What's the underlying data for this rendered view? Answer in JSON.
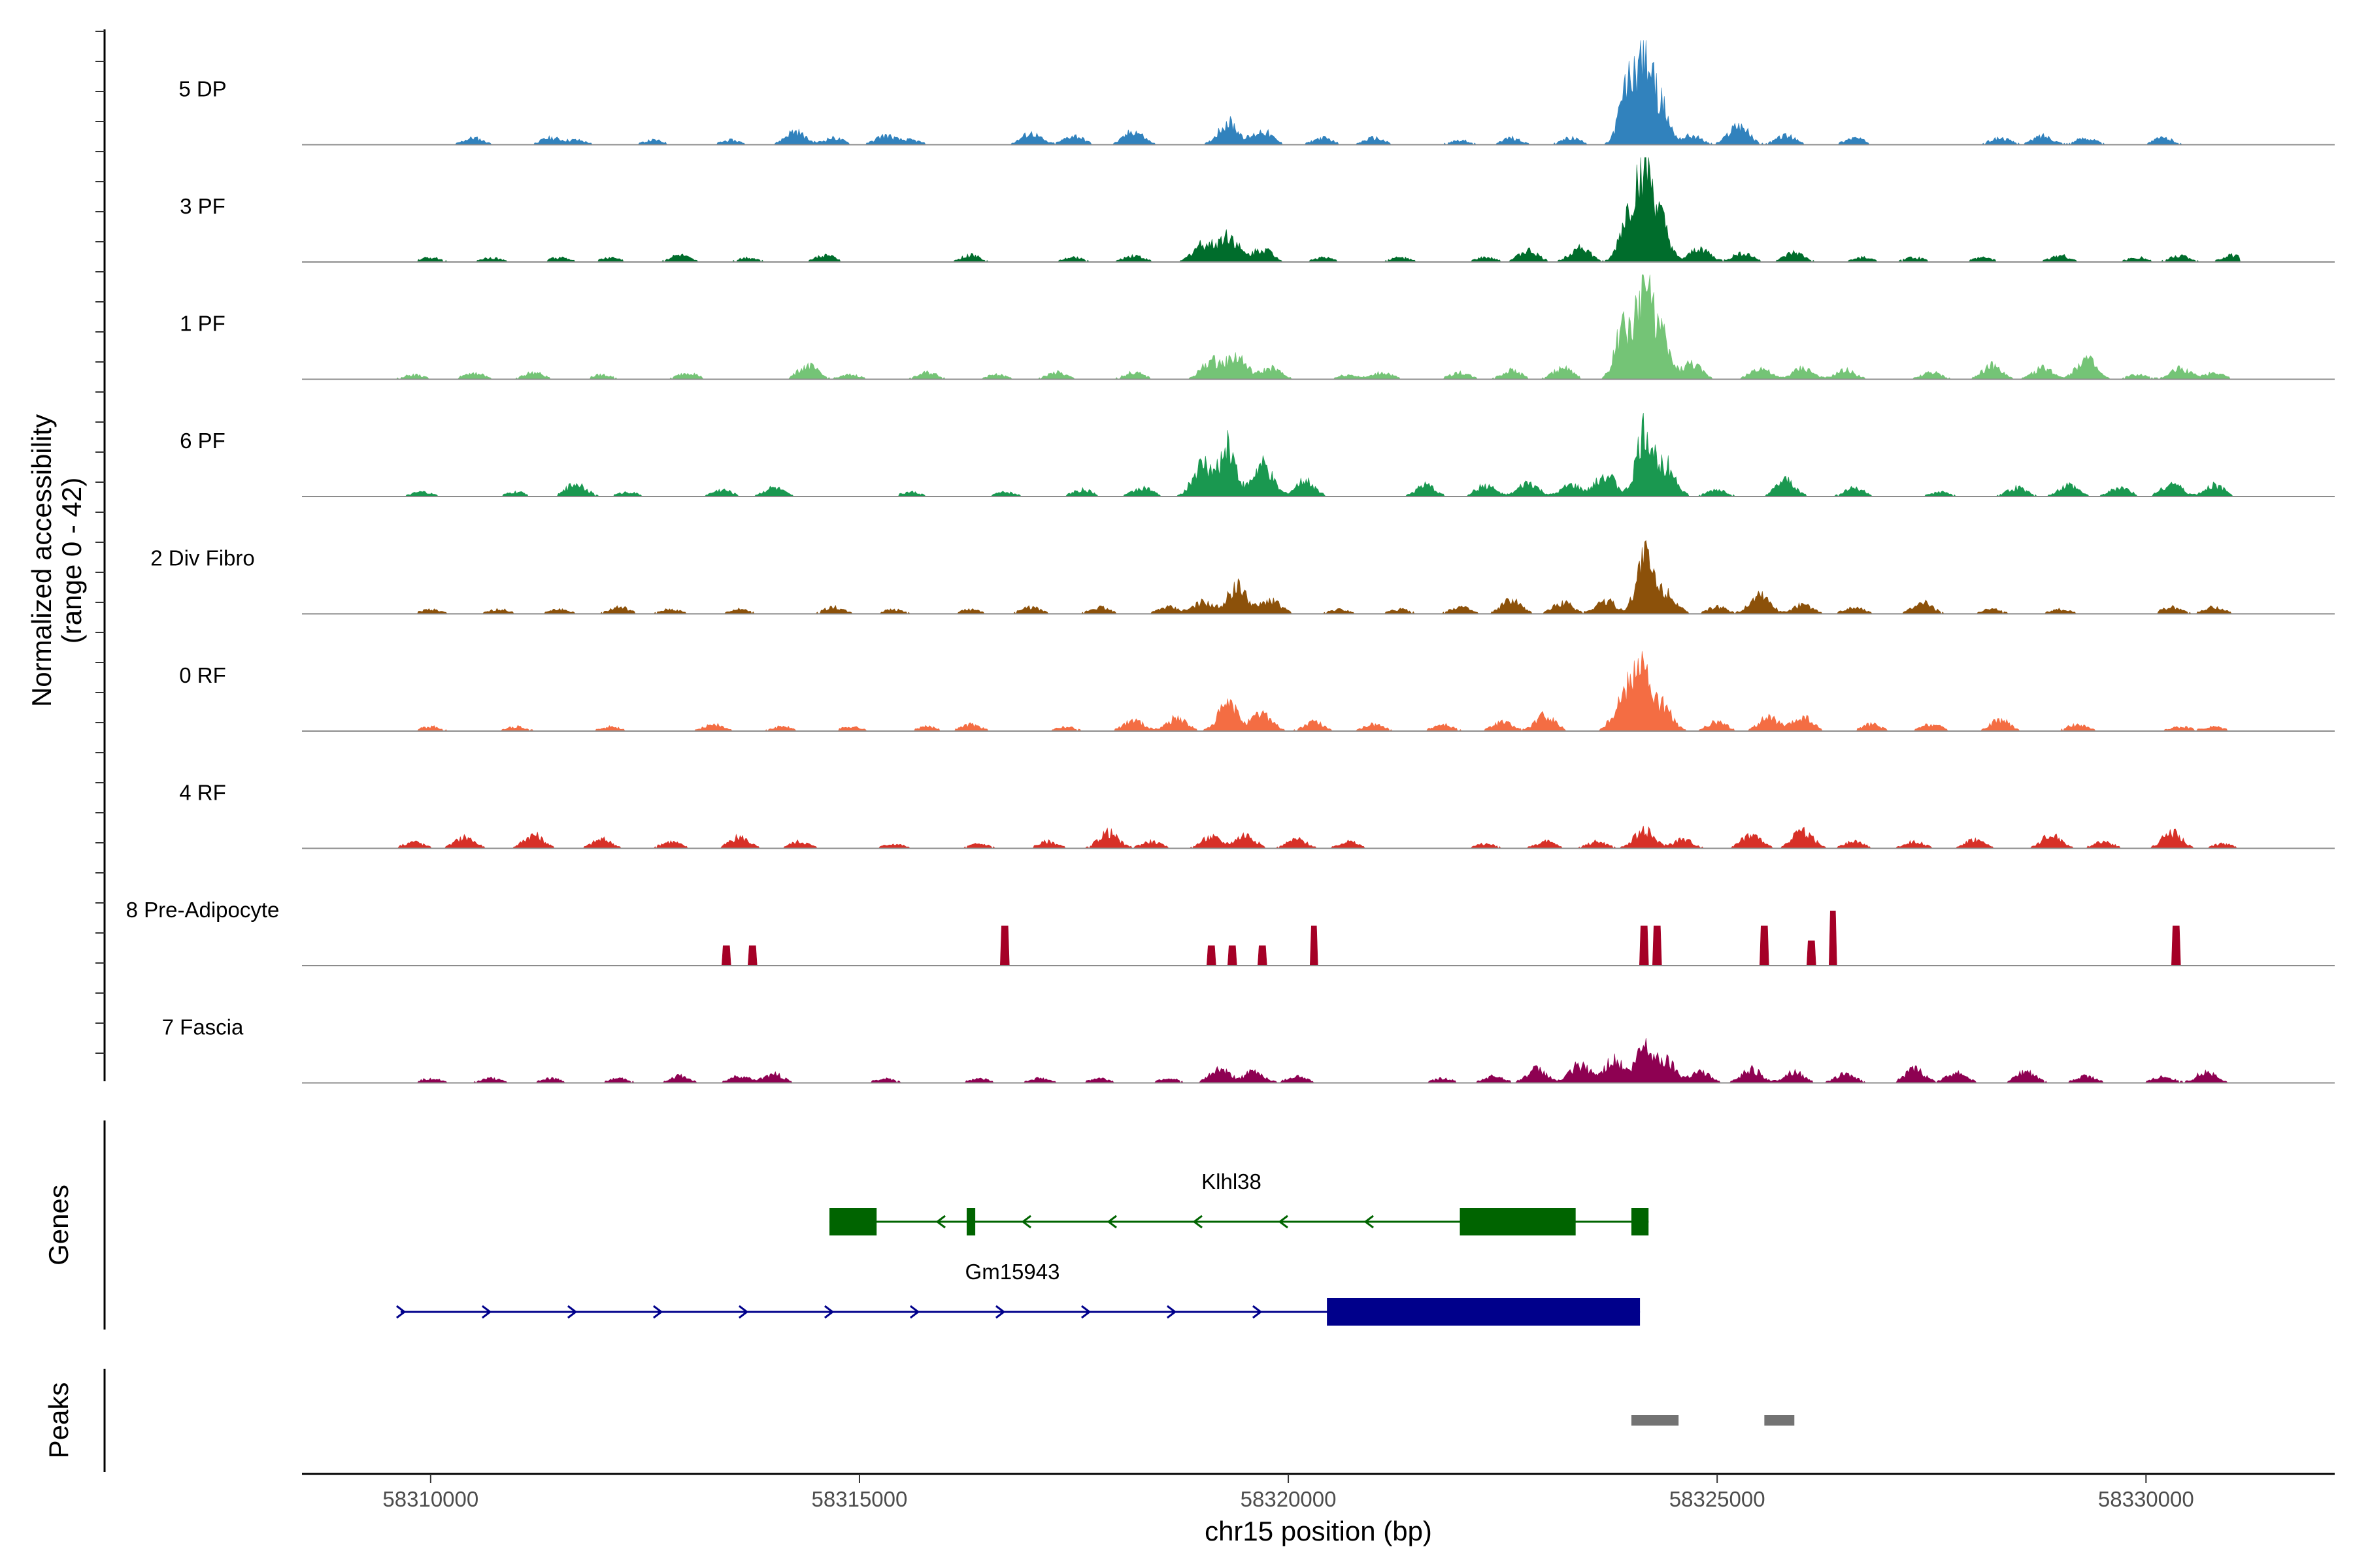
{
  "chart_data": {
    "type": "area",
    "title": "",
    "ylabel_line1": "Normalized accessibility",
    "ylabel_line2": "(range 0 - 42)",
    "xlabel": "chr15 position (bp)",
    "xlim": [
      58308500,
      58332200
    ],
    "ylim": [
      0,
      42
    ],
    "xticks": [
      58310000,
      58315000,
      58320000,
      58325000,
      58330000
    ],
    "track_start": 58309600,
    "track_end": 58331100,
    "baseline_color": "#8c8c8c",
    "series": [
      {
        "name": "5 DP",
        "color": "#3182bd",
        "peaks": [
          [
            58310500,
            3
          ],
          [
            58311400,
            3
          ],
          [
            58311700,
            2
          ],
          [
            58312600,
            2
          ],
          [
            58313500,
            2
          ],
          [
            58314250,
            6
          ],
          [
            58314700,
            3
          ],
          [
            58315300,
            4
          ],
          [
            58315600,
            2
          ],
          [
            58317000,
            5
          ],
          [
            58317500,
            4
          ],
          [
            58318200,
            6
          ],
          [
            58319300,
            10
          ],
          [
            58319700,
            6
          ],
          [
            58320400,
            3
          ],
          [
            58321000,
            3
          ],
          [
            58322000,
            2
          ],
          [
            58322600,
            3
          ],
          [
            58323300,
            3
          ],
          [
            58323950,
            24
          ],
          [
            58324150,
            38
          ],
          [
            58324350,
            16
          ],
          [
            58324700,
            4
          ],
          [
            58325250,
            9
          ],
          [
            58325800,
            4
          ],
          [
            58326600,
            3
          ],
          [
            58328300,
            3
          ],
          [
            58328800,
            4
          ],
          [
            58329300,
            3
          ],
          [
            58330200,
            3
          ]
        ]
      },
      {
        "name": "3 PF",
        "color": "#006d2c",
        "peaks": [
          [
            58310000,
            2
          ],
          [
            58310700,
            2
          ],
          [
            58311500,
            2
          ],
          [
            58312100,
            2
          ],
          [
            58312900,
            3
          ],
          [
            58313700,
            2
          ],
          [
            58314600,
            3
          ],
          [
            58316300,
            3
          ],
          [
            58317500,
            2
          ],
          [
            58318200,
            3
          ],
          [
            58319000,
            8
          ],
          [
            58319300,
            12
          ],
          [
            58319700,
            6
          ],
          [
            58320400,
            2
          ],
          [
            58321300,
            2
          ],
          [
            58322300,
            2
          ],
          [
            58322800,
            5
          ],
          [
            58323400,
            7
          ],
          [
            58323950,
            18
          ],
          [
            58324150,
            42
          ],
          [
            58324350,
            16
          ],
          [
            58324800,
            6
          ],
          [
            58325300,
            4
          ],
          [
            58325900,
            4
          ],
          [
            58326700,
            2
          ],
          [
            58327300,
            2
          ],
          [
            58328100,
            2
          ],
          [
            58329000,
            3
          ],
          [
            58329900,
            2
          ],
          [
            58330400,
            3
          ],
          [
            58331000,
            3
          ]
        ]
      },
      {
        "name": "1 PF",
        "color": "#74c476",
        "peaks": [
          [
            58309800,
            2
          ],
          [
            58310500,
            3
          ],
          [
            58311200,
            3
          ],
          [
            58312000,
            2
          ],
          [
            58313000,
            3
          ],
          [
            58314400,
            6
          ],
          [
            58314900,
            2
          ],
          [
            58315800,
            3
          ],
          [
            58316600,
            2
          ],
          [
            58317300,
            3
          ],
          [
            58318200,
            3
          ],
          [
            58319100,
            8
          ],
          [
            58319400,
            10
          ],
          [
            58319800,
            5
          ],
          [
            58320700,
            2
          ],
          [
            58321100,
            3
          ],
          [
            58322000,
            3
          ],
          [
            58322600,
            4
          ],
          [
            58323200,
            5
          ],
          [
            58323900,
            22
          ],
          [
            58324150,
            42
          ],
          [
            58324350,
            18
          ],
          [
            58324700,
            7
          ],
          [
            58325500,
            5
          ],
          [
            58326000,
            5
          ],
          [
            58326500,
            4
          ],
          [
            58327500,
            3
          ],
          [
            58328200,
            6
          ],
          [
            58328800,
            5
          ],
          [
            58329300,
            9
          ],
          [
            58329900,
            2
          ],
          [
            58330400,
            5
          ],
          [
            58330800,
            3
          ]
        ]
      },
      {
        "name": "6 PF",
        "color": "#1a9850",
        "peaks": [
          [
            58309900,
            2
          ],
          [
            58311000,
            2
          ],
          [
            58311700,
            6
          ],
          [
            58312300,
            2
          ],
          [
            58313400,
            3
          ],
          [
            58314000,
            4
          ],
          [
            58315600,
            2
          ],
          [
            58316700,
            2
          ],
          [
            58317600,
            3
          ],
          [
            58318300,
            4
          ],
          [
            58319000,
            14
          ],
          [
            58319300,
            22
          ],
          [
            58319700,
            14
          ],
          [
            58320200,
            7
          ],
          [
            58321600,
            5
          ],
          [
            58322300,
            5
          ],
          [
            58322800,
            6
          ],
          [
            58323300,
            5
          ],
          [
            58323700,
            10
          ],
          [
            58324150,
            28
          ],
          [
            58324400,
            14
          ],
          [
            58325000,
            3
          ],
          [
            58325800,
            7
          ],
          [
            58326600,
            4
          ],
          [
            58327600,
            2
          ],
          [
            58328500,
            4
          ],
          [
            58329100,
            5
          ],
          [
            58329700,
            4
          ],
          [
            58330300,
            6
          ],
          [
            58330800,
            5
          ]
        ]
      },
      {
        "name": "2 Div Fibro",
        "color": "#8c510a",
        "peaks": [
          [
            58310000,
            2
          ],
          [
            58310800,
            2
          ],
          [
            58311500,
            2
          ],
          [
            58312200,
            3
          ],
          [
            58312800,
            2
          ],
          [
            58313600,
            2
          ],
          [
            58314700,
            3
          ],
          [
            58315400,
            2
          ],
          [
            58316300,
            2
          ],
          [
            58317000,
            3
          ],
          [
            58317800,
            3
          ],
          [
            58318600,
            3
          ],
          [
            58319000,
            5
          ],
          [
            58319400,
            12
          ],
          [
            58319800,
            6
          ],
          [
            58320600,
            2
          ],
          [
            58321300,
            2
          ],
          [
            58322000,
            3
          ],
          [
            58322600,
            6
          ],
          [
            58323200,
            5
          ],
          [
            58323700,
            6
          ],
          [
            58324150,
            26
          ],
          [
            58324400,
            10
          ],
          [
            58325000,
            3
          ],
          [
            58325500,
            9
          ],
          [
            58326000,
            4
          ],
          [
            58326600,
            3
          ],
          [
            58327400,
            5
          ],
          [
            58328200,
            2
          ],
          [
            58329000,
            2
          ],
          [
            58330300,
            3
          ],
          [
            58330800,
            3
          ]
        ]
      },
      {
        "name": "0 RF",
        "color": "#f46d43",
        "peaks": [
          [
            58310000,
            2
          ],
          [
            58311000,
            2
          ],
          [
            58312100,
            2
          ],
          [
            58313300,
            3
          ],
          [
            58314100,
            2
          ],
          [
            58314900,
            2
          ],
          [
            58315800,
            2
          ],
          [
            58316300,
            3
          ],
          [
            58317400,
            2
          ],
          [
            58318200,
            5
          ],
          [
            58318700,
            6
          ],
          [
            58319300,
            12
          ],
          [
            58319700,
            8
          ],
          [
            58320300,
            4
          ],
          [
            58321000,
            3
          ],
          [
            58321800,
            3
          ],
          [
            58322500,
            4
          ],
          [
            58323000,
            7
          ],
          [
            58323900,
            14
          ],
          [
            58324100,
            30
          ],
          [
            58324350,
            12
          ],
          [
            58325000,
            4
          ],
          [
            58325600,
            6
          ],
          [
            58326000,
            6
          ],
          [
            58326800,
            3
          ],
          [
            58327500,
            3
          ],
          [
            58328300,
            5
          ],
          [
            58329200,
            3
          ],
          [
            58330400,
            2
          ],
          [
            58330800,
            2
          ]
        ]
      },
      {
        "name": "4 RF",
        "color": "#d73027",
        "peaks": [
          [
            58309800,
            3
          ],
          [
            58310400,
            5
          ],
          [
            58311200,
            6
          ],
          [
            58312000,
            4
          ],
          [
            58312800,
            3
          ],
          [
            58313600,
            5
          ],
          [
            58314300,
            3
          ],
          [
            58315400,
            2
          ],
          [
            58316400,
            2
          ],
          [
            58317200,
            3
          ],
          [
            58317900,
            7
          ],
          [
            58318400,
            3
          ],
          [
            58319100,
            5
          ],
          [
            58319500,
            6
          ],
          [
            58320100,
            4
          ],
          [
            58320700,
            3
          ],
          [
            58322300,
            2
          ],
          [
            58323000,
            3
          ],
          [
            58323600,
            3
          ],
          [
            58324150,
            8
          ],
          [
            58324600,
            4
          ],
          [
            58325400,
            6
          ],
          [
            58326000,
            8
          ],
          [
            58326600,
            3
          ],
          [
            58327300,
            3
          ],
          [
            58328000,
            4
          ],
          [
            58328900,
            6
          ],
          [
            58329500,
            3
          ],
          [
            58330300,
            7
          ],
          [
            58330900,
            2
          ]
        ]
      },
      {
        "name": "8 Pre-Adipocyte",
        "color": "#a50026",
        "peaks": [
          [
            58313450,
            8
          ],
          [
            58313750,
            8
          ],
          [
            58316700,
            16
          ],
          [
            58319100,
            8
          ],
          [
            58319350,
            8
          ],
          [
            58319700,
            8
          ],
          [
            58320300,
            16
          ],
          [
            58324150,
            16
          ],
          [
            58324300,
            16
          ],
          [
            58325550,
            16
          ],
          [
            58326100,
            10
          ],
          [
            58326350,
            22
          ],
          [
            58330350,
            16
          ]
        ]
      },
      {
        "name": "7 Fascia",
        "color": "#8e0152",
        "peaks": [
          [
            58310000,
            2
          ],
          [
            58310700,
            2
          ],
          [
            58311400,
            2
          ],
          [
            58312200,
            2
          ],
          [
            58312900,
            3
          ],
          [
            58313600,
            3
          ],
          [
            58314000,
            4
          ],
          [
            58315300,
            2
          ],
          [
            58316400,
            2
          ],
          [
            58317100,
            2
          ],
          [
            58317800,
            2
          ],
          [
            58318600,
            2
          ],
          [
            58319200,
            6
          ],
          [
            58319600,
            5
          ],
          [
            58320100,
            3
          ],
          [
            58321800,
            2
          ],
          [
            58322400,
            3
          ],
          [
            58322900,
            6
          ],
          [
            58323400,
            8
          ],
          [
            58323800,
            10
          ],
          [
            58324150,
            16
          ],
          [
            58324400,
            10
          ],
          [
            58324800,
            5
          ],
          [
            58325400,
            6
          ],
          [
            58325900,
            5
          ],
          [
            58326500,
            4
          ],
          [
            58327300,
            6
          ],
          [
            58327800,
            5
          ],
          [
            58328600,
            5
          ],
          [
            58329300,
            3
          ],
          [
            58330200,
            3
          ],
          [
            58330700,
            5
          ]
        ]
      }
    ],
    "genes": [
      {
        "name": "Klhl38",
        "strand": "-",
        "color": "#006400",
        "start": 58314650,
        "end": 58324200,
        "exons": [
          [
            58314650,
            58315200
          ],
          [
            58316250,
            58316350
          ],
          [
            58322000,
            58323350
          ],
          [
            58324000,
            58324200
          ]
        ]
      },
      {
        "name": "Gm15943",
        "strand": "+",
        "color": "#00008b",
        "start": 58309650,
        "end": 58324100,
        "exons": [
          [
            58320450,
            58324100
          ]
        ]
      }
    ],
    "peaks_track": [
      [
        58324000,
        58324550
      ],
      [
        58325550,
        58325900
      ]
    ],
    "peaks_color": "#737373",
    "panel_labels": {
      "genes": "Genes",
      "peaks": "Peaks"
    }
  }
}
